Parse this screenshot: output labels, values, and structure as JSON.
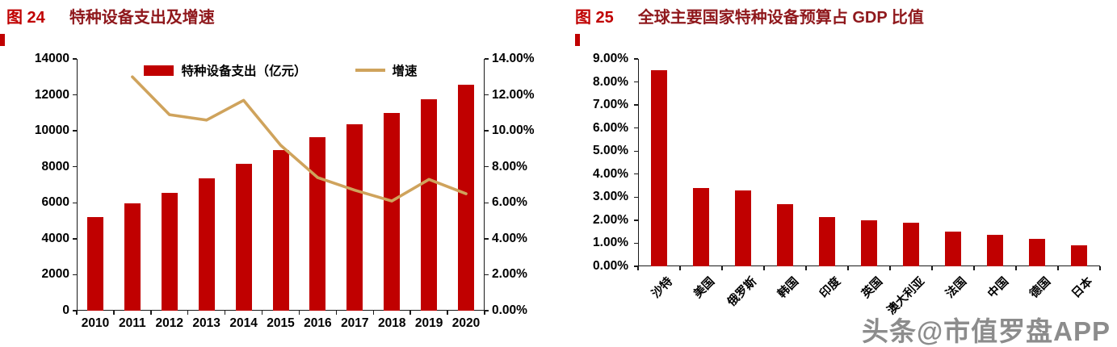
{
  "watermark": "头条@市值罗盘APP",
  "colors": {
    "bar": "#c00000",
    "line": "#cfa35c",
    "caption_label": "#c00000",
    "caption_title": "#8f181c"
  },
  "chart_data": [
    {
      "type": "bar+line",
      "figure_label": "图 24",
      "title": "特种设备支出及增速",
      "categories": [
        "2010",
        "2011",
        "2012",
        "2013",
        "2014",
        "2015",
        "2016",
        "2017",
        "2018",
        "2019",
        "2020"
      ],
      "series": [
        {
          "name": "特种设备支出（亿元）",
          "type": "bar",
          "axis": "left",
          "values": [
            5200,
            5950,
            6550,
            7350,
            8150,
            8950,
            9650,
            10350,
            11000,
            11750,
            12550
          ]
        },
        {
          "name": "增速",
          "type": "line",
          "axis": "right",
          "values": [
            null,
            13.0,
            10.9,
            10.6,
            11.7,
            9.2,
            7.4,
            6.7,
            6.1,
            7.3,
            6.5
          ]
        }
      ],
      "left_axis": {
        "min": 0,
        "max": 14000,
        "step": 2000,
        "tick_labels": [
          "0",
          "2000",
          "4000",
          "6000",
          "8000",
          "10000",
          "12000",
          "14000"
        ]
      },
      "right_axis": {
        "min": 0,
        "max": 14,
        "step": 2,
        "tick_labels": [
          "0.00%",
          "2.00%",
          "4.00%",
          "6.00%",
          "8.00%",
          "10.00%",
          "12.00%",
          "14.00%"
        ]
      },
      "legend_position": "top",
      "grid": false
    },
    {
      "type": "bar",
      "figure_label": "图 25",
      "title": "全球主要国家特种设备预算占 GDP 比值",
      "categories": [
        "沙特",
        "美国",
        "俄罗斯",
        "韩国",
        "印度",
        "英国",
        "澳大利亚",
        "法国",
        "中国",
        "德国",
        "日本"
      ],
      "values": [
        8.5,
        3.4,
        3.3,
        2.7,
        2.15,
        2.0,
        1.9,
        1.5,
        1.35,
        1.2,
        0.9
      ],
      "y_axis": {
        "min": 0,
        "max": 9,
        "step": 1,
        "tick_labels": [
          "0.00%",
          "1.00%",
          "2.00%",
          "3.00%",
          "4.00%",
          "5.00%",
          "6.00%",
          "7.00%",
          "8.00%",
          "9.00%"
        ]
      },
      "grid": false
    }
  ]
}
